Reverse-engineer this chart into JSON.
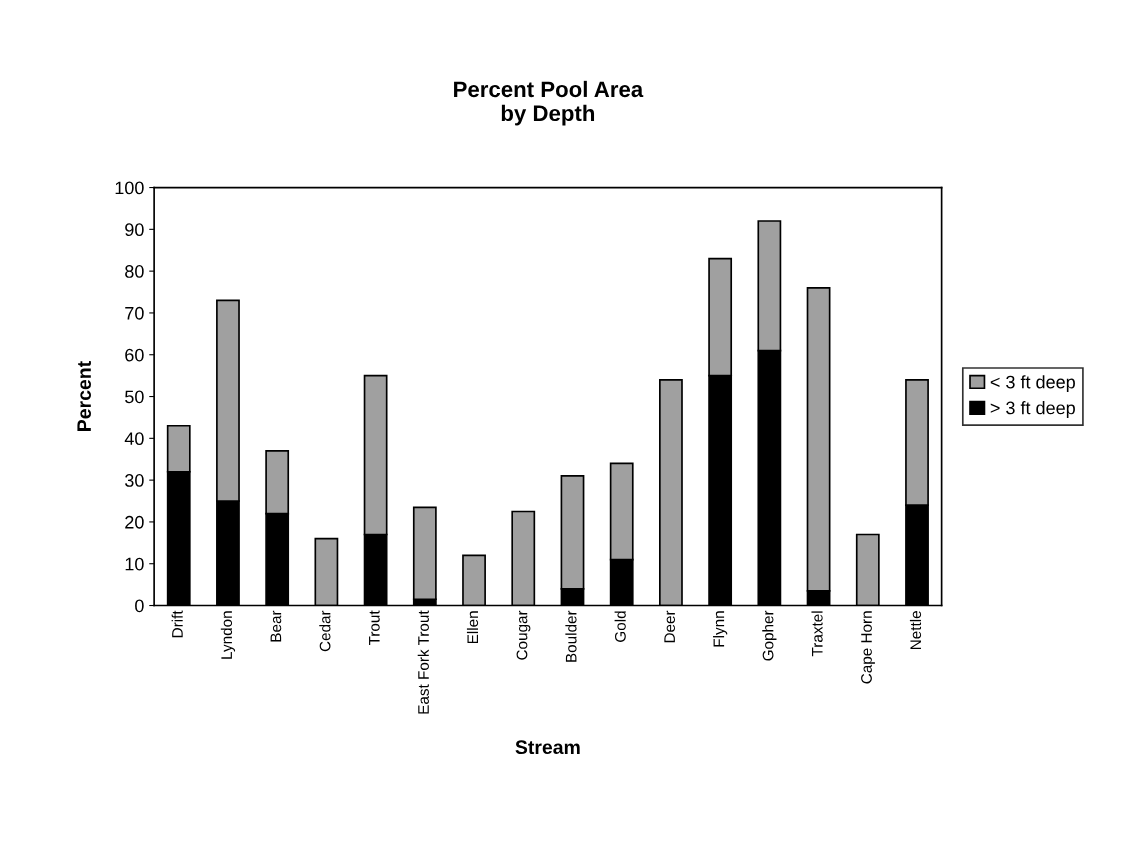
{
  "chart_data": {
    "type": "bar",
    "title": "Percent Pool Area\nby Depth",
    "xlabel": "Stream",
    "ylabel": "Percent",
    "categories": [
      "Drift",
      "Lyndon",
      "Bear",
      "Cedar",
      "Trout",
      "East Fork Trout",
      "Ellen",
      "Cougar",
      "Boulder",
      "Gold",
      "Deer",
      "Flynn",
      "Gopher",
      "Traxtel",
      "Cape Horn",
      "Nettle"
    ],
    "stacked": true,
    "series": [
      {
        "name": "> 3 ft deep",
        "color": "#000000",
        "values": [
          32,
          25,
          22,
          0,
          17,
          1.5,
          0,
          0,
          4,
          11,
          0,
          55,
          61,
          3.5,
          0,
          24
        ]
      },
      {
        "name": "< 3 ft deep",
        "color": "#a0a0a0",
        "values": [
          11,
          48,
          15,
          16,
          38,
          22,
          12,
          22.5,
          27,
          23,
          54,
          28,
          31,
          72.5,
          17,
          30
        ]
      }
    ],
    "ylim": [
      0,
      100
    ],
    "yticks": [
      0,
      10,
      20,
      30,
      40,
      50,
      60,
      70,
      80,
      90,
      100
    ],
    "grid": false,
    "legend": "right"
  }
}
